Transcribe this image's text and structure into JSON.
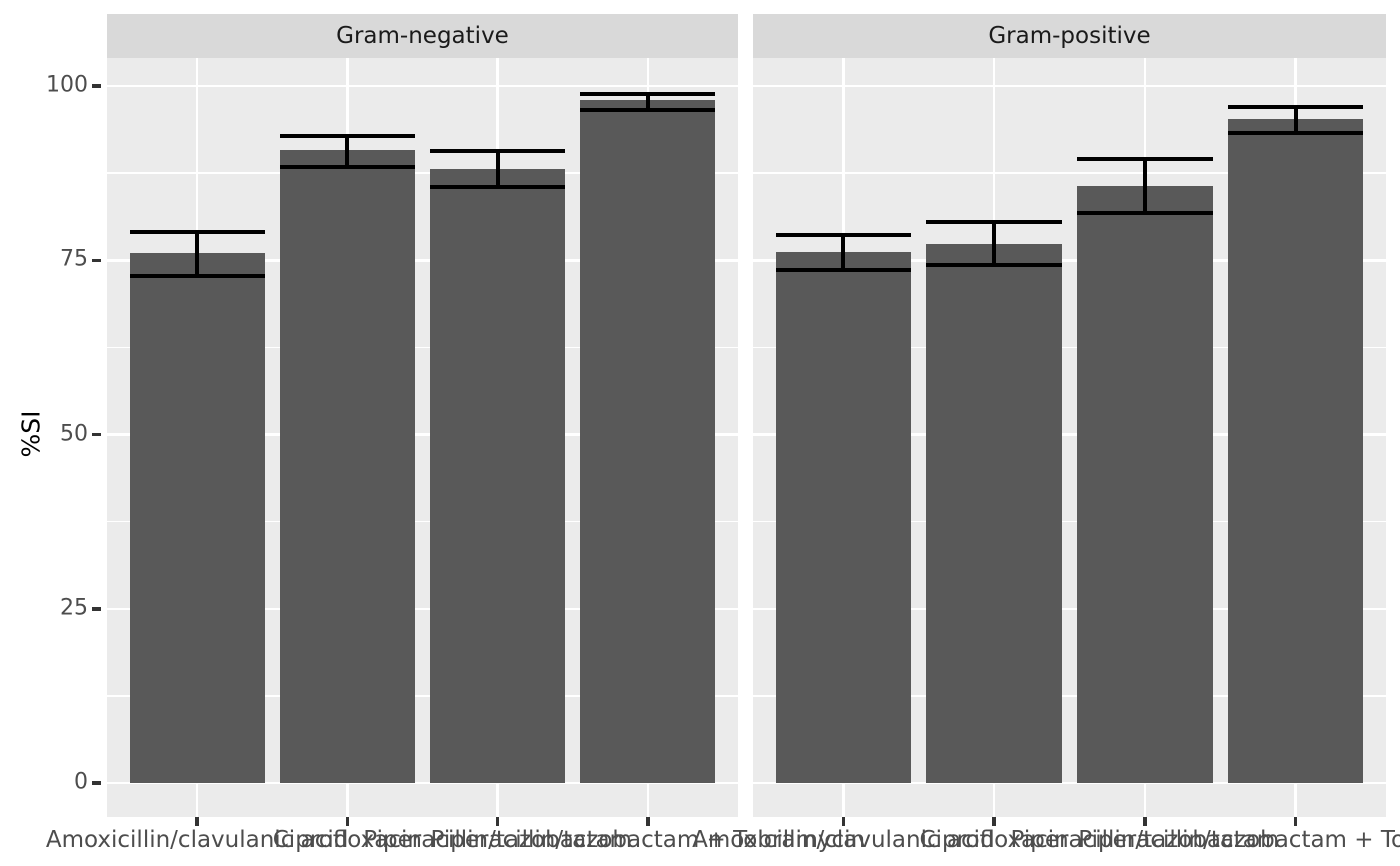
{
  "chart_data": {
    "type": "bar",
    "title": "",
    "xlabel": "",
    "ylabel": "%SI",
    "ylim": [
      0,
      100
    ],
    "y_ticks": [
      0,
      25,
      50,
      75,
      100
    ],
    "y_minor_ticks": [
      12.5,
      37.5,
      62.5,
      87.5
    ],
    "grid": "on",
    "legend_position": "none",
    "categories": [
      "Amoxicillin/clavulanic acid",
      "Ciprofloxacin",
      "Piperacillin/tazobactam",
      "Piperacillin/tazobactam + Tobramycin"
    ],
    "facets": [
      {
        "label": "Gram-negative",
        "values": [
          76.1,
          90.8,
          88.1,
          98.0
        ],
        "error_low": [
          72.8,
          88.4,
          85.5,
          96.6
        ],
        "error_high": [
          79.1,
          92.8,
          90.7,
          98.9
        ]
      },
      {
        "label": "Gram-positive",
        "values": [
          76.2,
          77.4,
          85.6,
          95.3
        ],
        "error_low": [
          73.6,
          74.3,
          81.8,
          93.3
        ],
        "error_high": [
          78.6,
          80.5,
          89.5,
          97.0
        ]
      }
    ],
    "colors": {
      "bar_fill": "#595959",
      "error_bar": "#000000",
      "panel_background": "#EBEBEB",
      "strip_background": "#D9D9D9",
      "gridline": "#FFFFFF",
      "axis_text": "#4D4D4D",
      "strip_text": "#1A1A1A",
      "tick_mark": "#333333"
    }
  }
}
